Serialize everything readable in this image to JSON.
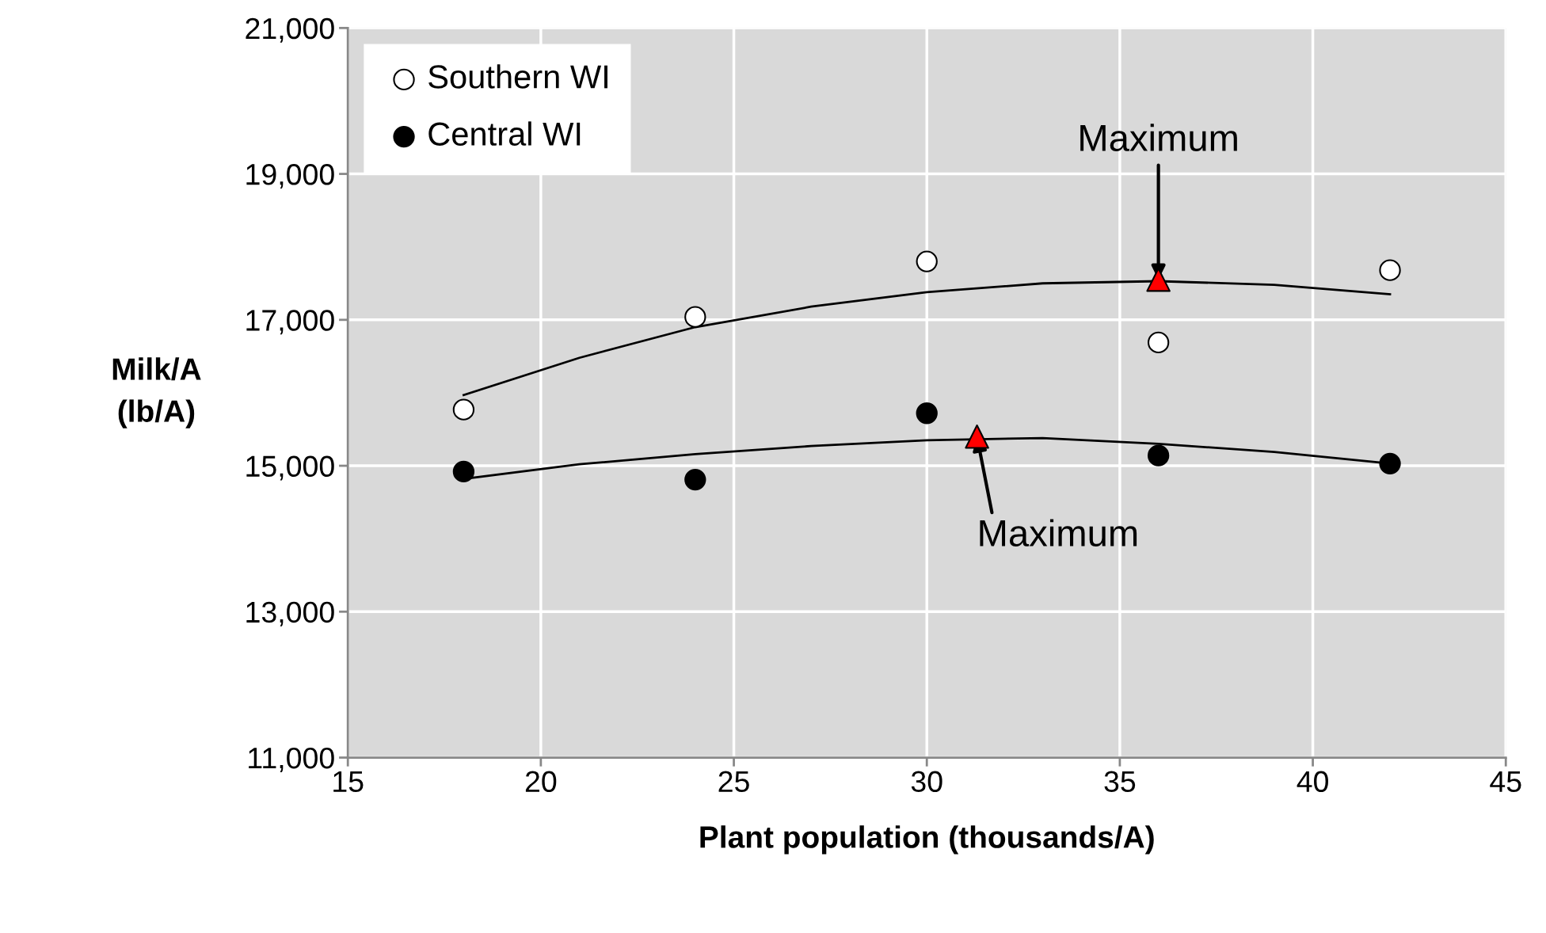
{
  "chart_data": {
    "type": "scatter",
    "xlabel": "Plant population (thousands/A)",
    "ylabel": "Milk/A\n(lb/A)",
    "xlim": [
      15,
      45
    ],
    "xticks": [
      15,
      20,
      25,
      30,
      35,
      40,
      45
    ],
    "ylim": [
      11000,
      21000
    ],
    "yticks": [
      {
        "value": 11000,
        "label": "11,000"
      },
      {
        "value": 13000,
        "label": "13,000"
      },
      {
        "value": 15000,
        "label": "15,000"
      },
      {
        "value": 17000,
        "label": "17,000"
      },
      {
        "value": 19000,
        "label": "19,000"
      },
      {
        "value": 21000,
        "label": "21,000"
      }
    ],
    "grid": true,
    "legend": "top left",
    "series": [
      {
        "name": "Southern WI",
        "color": "#ffffff",
        "marker": "circle",
        "x": [
          18,
          24,
          30,
          36,
          42
        ],
        "values": [
          15770,
          17040,
          17800,
          16690,
          17680
        ]
      },
      {
        "name": "Central WI",
        "color": "#000000",
        "marker": "circle",
        "x": [
          18,
          24,
          30,
          36,
          42
        ],
        "values": [
          14920,
          14810,
          15720,
          15140,
          15030
        ]
      },
      {
        "type": "line",
        "color": "#000000",
        "marker": "none",
        "x": [
          18,
          21,
          24,
          27,
          30,
          33,
          36,
          39,
          42
        ],
        "values": [
          15970,
          16480,
          16900,
          17180,
          17380,
          17500,
          17530,
          17480,
          17350
        ]
      },
      {
        "type": "line",
        "color": "#000000",
        "marker": "none",
        "x": [
          18,
          21,
          24,
          27,
          30,
          33,
          36,
          39,
          42
        ],
        "values": [
          14820,
          15020,
          15160,
          15270,
          15350,
          15380,
          15300,
          15190,
          15030
        ]
      },
      {
        "color": "#ff0000",
        "marker": "triangle",
        "x": [
          36,
          31.3
        ],
        "values": [
          17550,
          15400
        ]
      }
    ],
    "annotations": [
      {
        "text": "Maximum",
        "x": 36,
        "y": 17550
      },
      {
        "text": "Maximum",
        "x": 31.3,
        "y": 15400
      }
    ]
  }
}
